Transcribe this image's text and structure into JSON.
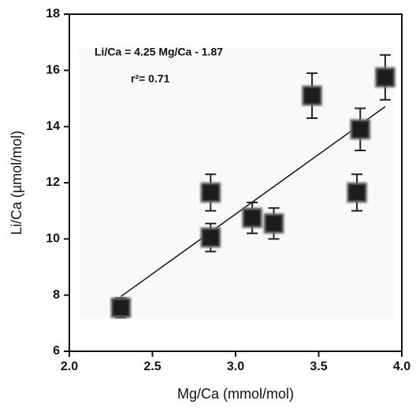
{
  "chart_data": {
    "type": "scatter",
    "xlabel": "Mg/Ca (mmol/mol)",
    "ylabel": "Li/Ca (µmol/mol)",
    "annotations": [
      "Li/Ca = 4.25 Mg/Ca - 1.87",
      "r²= 0.71"
    ],
    "xlim": [
      2.0,
      4.0
    ],
    "ylim": [
      6,
      18
    ],
    "xticks": [
      {
        "value": 2.0,
        "label": "2.0"
      },
      {
        "value": 2.5,
        "label": "2.5"
      },
      {
        "value": 3.0,
        "label": "3.0"
      },
      {
        "value": 3.5,
        "label": "3.5"
      },
      {
        "value": 4.0,
        "label": "4.0"
      }
    ],
    "yticks": [
      6,
      8,
      10,
      12,
      14,
      16,
      18
    ],
    "color": "#1a1a1a",
    "x": [
      2.31,
      2.85,
      2.85,
      3.1,
      3.23,
      3.46,
      3.75,
      3.73,
      3.9
    ],
    "values": [
      7.55,
      11.65,
      10.05,
      10.75,
      10.55,
      15.1,
      13.9,
      11.65,
      15.75
    ],
    "errors": [
      0.35,
      0.65,
      0.5,
      0.55,
      0.55,
      0.8,
      0.75,
      0.65,
      0.8
    ],
    "fit": {
      "x": [
        2.31,
        3.9
      ],
      "y": [
        7.95,
        14.71
      ]
    }
  }
}
